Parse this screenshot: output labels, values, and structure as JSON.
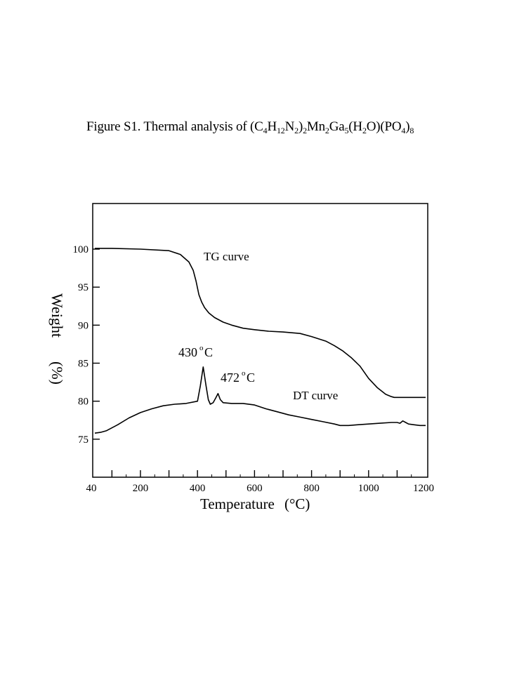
{
  "caption": {
    "prefix": "Figure S1. Thermal analysis of (C",
    "parts": [
      {
        "t": "4",
        "s": true
      },
      {
        "t": "H",
        "s": false
      },
      {
        "t": "12",
        "s": true
      },
      {
        "t": "N",
        "s": false
      },
      {
        "t": "2",
        "s": true
      },
      {
        "t": ")",
        "s": false
      },
      {
        "t": "2",
        "s": true
      },
      {
        "t": "Mn",
        "s": false
      },
      {
        "t": "2",
        "s": true
      },
      {
        "t": "Ga",
        "s": false
      },
      {
        "t": "5",
        "s": true
      },
      {
        "t": "(H",
        "s": false
      },
      {
        "t": "2",
        "s": true
      },
      {
        "t": "O)(PO",
        "s": false
      },
      {
        "t": "4",
        "s": true
      },
      {
        "t": ")",
        "s": false
      },
      {
        "t": "8",
        "s": true
      }
    ]
  },
  "chart_data": {
    "type": "line",
    "xlabel": "Temperature",
    "xlabel_unit": "(°C)",
    "ylabel": "Weight",
    "ylabel_unit": "(%)",
    "xlim": [
      40,
      1200
    ],
    "ylim": [
      70,
      106
    ],
    "x_ticks": [
      40,
      200,
      400,
      600,
      800,
      1000,
      1200
    ],
    "y_ticks": [
      75,
      80,
      85,
      90,
      95,
      100
    ],
    "series": [
      {
        "name": "TG curve",
        "x": [
          40,
          100,
          200,
          300,
          340,
          370,
          385,
          395,
          405,
          415,
          425,
          440,
          460,
          490,
          520,
          560,
          600,
          650,
          700,
          760,
          800,
          850,
          880,
          910,
          940,
          970,
          1000,
          1030,
          1060,
          1080,
          1090,
          1100,
          1110,
          1130,
          1160,
          1200
        ],
        "y": [
          100.1,
          100.1,
          100.0,
          99.8,
          99.3,
          98.3,
          97.2,
          95.8,
          94.0,
          93.0,
          92.3,
          91.6,
          91.0,
          90.4,
          90.0,
          89.6,
          89.4,
          89.2,
          89.1,
          88.9,
          88.5,
          87.9,
          87.3,
          86.6,
          85.7,
          84.6,
          83.0,
          81.8,
          80.9,
          80.6,
          80.5,
          80.5,
          80.5,
          80.5,
          80.5,
          80.5
        ]
      },
      {
        "name": "DT curve",
        "x": [
          40,
          60,
          80,
          120,
          160,
          200,
          240,
          280,
          320,
          360,
          400,
          410,
          420,
          430,
          438,
          445,
          455,
          465,
          472,
          480,
          490,
          520,
          560,
          600,
          640,
          680,
          720,
          760,
          800,
          840,
          880,
          900,
          930,
          960,
          1000,
          1040,
          1080,
          1100,
          1110,
          1120,
          1130,
          1140,
          1160,
          1180,
          1200
        ],
        "y": [
          75.8,
          75.9,
          76.1,
          76.9,
          77.8,
          78.5,
          79.0,
          79.4,
          79.6,
          79.7,
          80.0,
          82.0,
          84.5,
          82.0,
          80.2,
          79.6,
          79.8,
          80.5,
          81.0,
          80.2,
          79.8,
          79.7,
          79.7,
          79.5,
          79.0,
          78.6,
          78.2,
          77.9,
          77.6,
          77.3,
          77.0,
          76.8,
          76.8,
          76.9,
          77.0,
          77.1,
          77.2,
          77.2,
          77.1,
          77.4,
          77.2,
          77.0,
          76.9,
          76.8,
          76.8
        ]
      }
    ],
    "annotations": {
      "peak1_value": "430",
      "peak1_unit": "C",
      "peak2_value": "472",
      "peak2_unit": "C",
      "degree": "o"
    }
  }
}
